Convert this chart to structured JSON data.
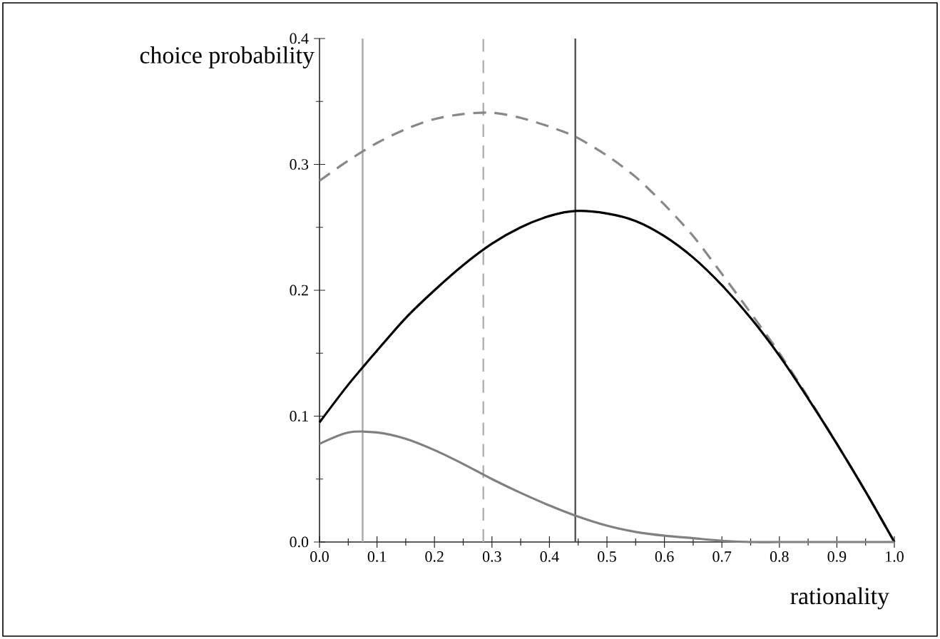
{
  "chart_data": {
    "type": "line",
    "xlabel": "rationality",
    "ylabel": "choice probability",
    "x": [
      0,
      0.05,
      0.1,
      0.15,
      0.2,
      0.25,
      0.3,
      0.35,
      0.4,
      0.445,
      0.5,
      0.55,
      0.6,
      0.65,
      0.7,
      0.75,
      0.8,
      0.85,
      0.9,
      0.95,
      1.0
    ],
    "series": [
      {
        "color": "#888888",
        "line_style": "dashed",
        "values": [
          0.287,
          0.303,
          0.317,
          0.328,
          0.336,
          0.34,
          0.341,
          0.337,
          0.33,
          0.322,
          0.307,
          0.29,
          0.268,
          0.243,
          0.213,
          0.182,
          0.15,
          0.115,
          0.078,
          0.04,
          0.0
        ]
      },
      {
        "color": "#000000",
        "line_style": "solid",
        "values": [
          0.095,
          0.125,
          0.152,
          0.178,
          0.2,
          0.22,
          0.237,
          0.25,
          0.259,
          0.263,
          0.261,
          0.255,
          0.243,
          0.226,
          0.204,
          0.178,
          0.148,
          0.114,
          0.078,
          0.04,
          0.0
        ]
      },
      {
        "color": "#808080",
        "line_style": "solid",
        "values": [
          0.078,
          0.087,
          0.087,
          0.082,
          0.073,
          0.062,
          0.05,
          0.039,
          0.029,
          0.021,
          0.013,
          0.008,
          0.005,
          0.003,
          0.001,
          0.0,
          0.0,
          0.0,
          0.0,
          0.0,
          0.0
        ]
      }
    ],
    "ref_lines": [
      {
        "axis": "x",
        "value": 0.075,
        "color": "#a8a8a8",
        "line_style": "solid"
      },
      {
        "axis": "x",
        "value": 0.285,
        "color": "#b0b0b0",
        "line_style": "dashed"
      },
      {
        "axis": "x",
        "value": 0.445,
        "color": "#505050",
        "line_style": "solid"
      }
    ],
    "xlim": [
      0,
      1.0
    ],
    "ylim": [
      0,
      0.4
    ],
    "xticks": [
      {
        "value": 0,
        "label": "0.0"
      },
      0.1,
      0.2,
      0.3,
      0.4,
      0.5,
      0.6,
      0.7,
      0.8,
      0.9,
      {
        "value": 1.0,
        "label": "1.0"
      }
    ],
    "yticks": [
      {
        "value": 0,
        "label": "0.0"
      },
      0.1,
      0.2,
      0.3,
      0.4
    ],
    "marker": "none"
  }
}
